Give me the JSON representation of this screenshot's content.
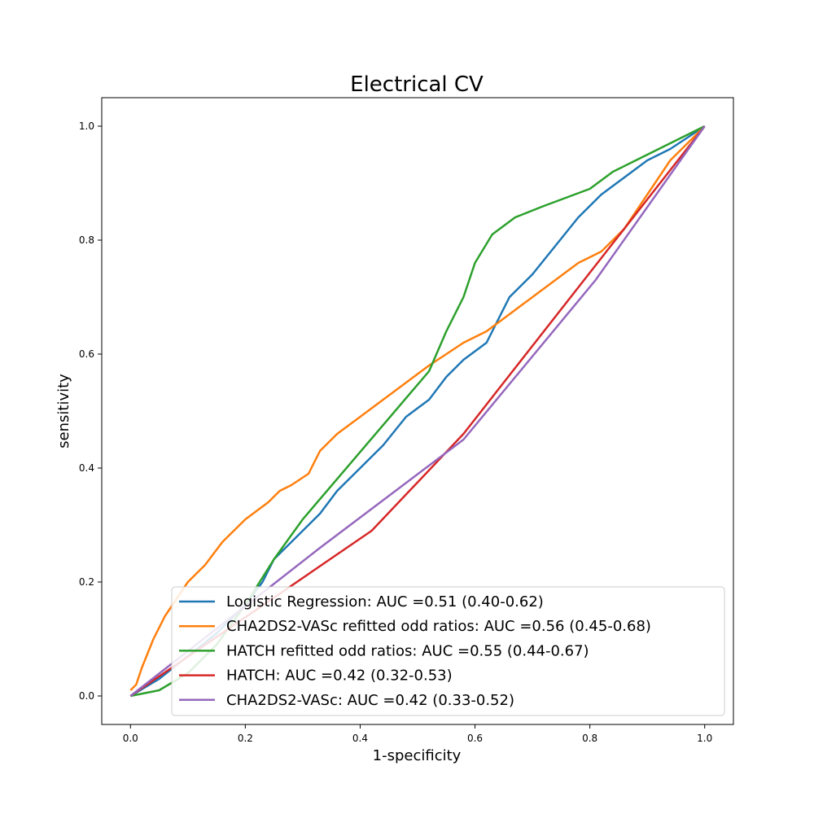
{
  "chart_data": {
    "type": "line",
    "title": "Electrical CV",
    "xlabel": "1-specificity",
    "ylabel": "sensitivity",
    "xlim": [
      -0.05,
      1.05
    ],
    "ylim": [
      -0.05,
      1.05
    ],
    "xticks": [
      "0.0",
      "0.2",
      "0.4",
      "0.6",
      "0.8",
      "1.0"
    ],
    "yticks": [
      "0.0",
      "0.2",
      "0.4",
      "0.6",
      "0.8",
      "1.0"
    ],
    "grid": false,
    "legend_position": "lower-right",
    "series": [
      {
        "name": "Logistic Regression: AUC =0.51 (0.40-0.62)",
        "color": "#1f77b4",
        "x": [
          0.0,
          0.05,
          0.1,
          0.15,
          0.2,
          0.23,
          0.25,
          0.28,
          0.3,
          0.33,
          0.36,
          0.4,
          0.44,
          0.48,
          0.52,
          0.55,
          0.58,
          0.62,
          0.64,
          0.66,
          0.7,
          0.74,
          0.78,
          0.82,
          0.86,
          0.9,
          0.94,
          0.97,
          1.0
        ],
        "y": [
          0.0,
          0.03,
          0.07,
          0.11,
          0.16,
          0.2,
          0.24,
          0.27,
          0.29,
          0.32,
          0.36,
          0.4,
          0.44,
          0.49,
          0.52,
          0.56,
          0.59,
          0.62,
          0.66,
          0.7,
          0.74,
          0.79,
          0.84,
          0.88,
          0.91,
          0.94,
          0.96,
          0.98,
          1.0
        ]
      },
      {
        "name": "CHA2DS2-VASc refitted odd ratios: AUC =0.56 (0.45-0.68)",
        "color": "#ff7f0e",
        "x": [
          0.0,
          0.01,
          0.02,
          0.04,
          0.06,
          0.08,
          0.1,
          0.13,
          0.16,
          0.2,
          0.24,
          0.26,
          0.28,
          0.31,
          0.33,
          0.36,
          0.4,
          0.44,
          0.48,
          0.52,
          0.55,
          0.58,
          0.62,
          0.66,
          0.7,
          0.74,
          0.78,
          0.82,
          0.86,
          0.9,
          0.94,
          0.97,
          1.0
        ],
        "y": [
          0.01,
          0.02,
          0.05,
          0.1,
          0.14,
          0.17,
          0.2,
          0.23,
          0.27,
          0.31,
          0.34,
          0.36,
          0.37,
          0.39,
          0.43,
          0.46,
          0.49,
          0.52,
          0.55,
          0.58,
          0.6,
          0.62,
          0.64,
          0.67,
          0.7,
          0.73,
          0.76,
          0.78,
          0.82,
          0.88,
          0.94,
          0.97,
          1.0
        ]
      },
      {
        "name": "HATCH refitted odd ratios: AUC =0.55 (0.44-0.67)",
        "color": "#2ca02c",
        "x": [
          0.0,
          0.05,
          0.1,
          0.15,
          0.2,
          0.25,
          0.3,
          0.52,
          0.55,
          0.58,
          0.6,
          0.63,
          0.67,
          0.72,
          0.76,
          0.8,
          0.84,
          0.88,
          0.92,
          0.96,
          1.0
        ],
        "y": [
          0.0,
          0.01,
          0.04,
          0.09,
          0.16,
          0.24,
          0.31,
          0.57,
          0.64,
          0.7,
          0.76,
          0.81,
          0.84,
          0.86,
          0.875,
          0.89,
          0.92,
          0.94,
          0.96,
          0.98,
          1.0
        ]
      },
      {
        "name": "HATCH: AUC =0.42 (0.32-0.53)",
        "color": "#d62728",
        "x": [
          0.0,
          0.42,
          0.58,
          1.0
        ],
        "y": [
          0.0,
          0.29,
          0.46,
          1.0
        ]
      },
      {
        "name": "CHA2DS2-VASc: AUC =0.42 (0.33-0.52)",
        "color": "#9467bd",
        "x": [
          0.0,
          0.33,
          0.58,
          0.81,
          1.0
        ],
        "y": [
          0.0,
          0.26,
          0.45,
          0.73,
          1.0
        ]
      }
    ]
  }
}
